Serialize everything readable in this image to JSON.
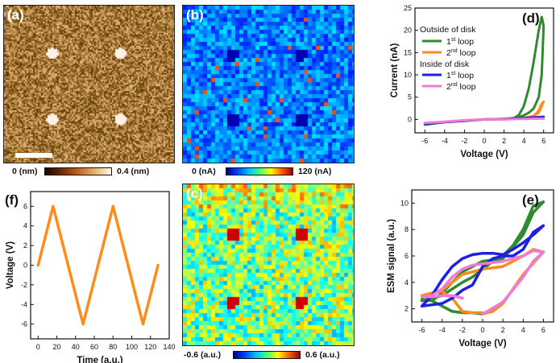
{
  "panels": {
    "a": {
      "label": "(a)",
      "cbar_min": "0 (nm)",
      "cbar_max": "0.4 (nm)"
    },
    "b": {
      "label": "(b)",
      "cbar_min": "0 (nA)",
      "cbar_max": "120 (nA)"
    },
    "c": {
      "label": "(c)",
      "cbar_min": "-0.6 (a.u.)",
      "cbar_max": "0.6 (a.u.)"
    },
    "d": {
      "label": "(d)"
    },
    "e": {
      "label": "(e)"
    },
    "f": {
      "label": "(f)"
    }
  },
  "colors": {
    "green": "#2e8b2e",
    "orange": "#ff8c1a",
    "blue": "#1f1fe0",
    "pink": "#f07ad8"
  },
  "chart_data": [
    {
      "id": "d",
      "type": "line",
      "xlabel": "Voltage (V)",
      "ylabel": "Current (nA)",
      "xlim": [
        -7,
        7
      ],
      "ylim": [
        -3,
        25
      ],
      "xticks": [
        -6,
        -4,
        -2,
        0,
        2,
        4,
        6
      ],
      "yticks": [
        0,
        5,
        10,
        15,
        20,
        25
      ],
      "legend": {
        "title1": "Outside of disk",
        "title2": "Inside of disk",
        "sup": "st",
        "sup2": "nd",
        "loop": "loop",
        "n1": "1",
        "n2": "2"
      },
      "series": [
        {
          "name": "Outside 1st loop",
          "color": "green",
          "x": [
            -6,
            -4,
            -2,
            0,
            2,
            3,
            3.5,
            4,
            4.5,
            5,
            5.5,
            5.8,
            6,
            5.8,
            5.5,
            5,
            4.5,
            4,
            3.5,
            3,
            2,
            0,
            -2,
            -4,
            -6
          ],
          "y": [
            -1.2,
            -0.6,
            -0.3,
            0,
            0.1,
            0.3,
            1,
            3,
            7,
            13,
            20,
            23,
            21,
            10,
            5,
            2.5,
            1.5,
            0.9,
            0.5,
            0.3,
            0.1,
            0,
            -0.3,
            -0.6,
            -1.2
          ]
        },
        {
          "name": "Outside 2nd loop",
          "color": "orange",
          "x": [
            -6,
            -4,
            -2,
            0,
            2,
            4,
            5,
            5.5,
            5.8,
            6,
            5.8,
            5.5,
            5,
            4,
            2,
            0,
            -2,
            -4,
            -6
          ],
          "y": [
            -1.0,
            -0.5,
            -0.2,
            0,
            0,
            0.2,
            0.8,
            2,
            3.5,
            4,
            3,
            1.5,
            0.8,
            0.3,
            0,
            0,
            -0.2,
            -0.5,
            -1.0
          ]
        },
        {
          "name": "Inside 1st loop",
          "color": "blue",
          "x": [
            -6,
            -4,
            -2,
            0,
            2,
            4,
            6,
            4,
            2,
            0,
            -2,
            -4,
            -6
          ],
          "y": [
            -1.0,
            -0.6,
            -0.3,
            0,
            0.1,
            0.3,
            0.6,
            0.3,
            0.1,
            0,
            -0.3,
            -0.6,
            -1.0
          ]
        },
        {
          "name": "Inside 2nd loop",
          "color": "pink",
          "x": [
            -6,
            -4,
            -2,
            0,
            2,
            4,
            6,
            4,
            2,
            0,
            -2,
            -4,
            -6
          ],
          "y": [
            -0.8,
            -0.5,
            -0.2,
            0,
            0.05,
            0.1,
            0.2,
            0.1,
            0.05,
            0,
            -0.2,
            -0.5,
            -0.8
          ]
        }
      ]
    },
    {
      "id": "e",
      "type": "line",
      "xlabel": "Voltage (V)",
      "ylabel": "ESM signal (a.u.)",
      "xlim": [
        -7,
        7
      ],
      "ylim": [
        1,
        11
      ],
      "xticks": [
        -6,
        -4,
        -2,
        0,
        2,
        4,
        6
      ],
      "yticks": [
        2,
        4,
        6,
        8,
        10
      ],
      "series": [
        {
          "name": "Outside 1st loop",
          "color": "green",
          "x": [
            0,
            -1,
            -2,
            -3,
            -4,
            -5,
            -6,
            -5,
            -4,
            -2,
            0,
            2,
            4,
            5,
            6,
            5,
            4,
            3,
            2,
            1,
            0,
            -1,
            -2,
            -3,
            -4,
            -5,
            -6
          ],
          "y": [
            1.6,
            1.7,
            1.7,
            1.8,
            2.2,
            2.6,
            2.7,
            2.6,
            3.2,
            4.8,
            5.6,
            5.8,
            7.6,
            9.3,
            10.1,
            9.8,
            8.0,
            6.8,
            6.0,
            5.6,
            5.0,
            4.4,
            4.0,
            3.5,
            3.0,
            2.8,
            2.6
          ]
        },
        {
          "name": "Outside 2nd loop",
          "color": "orange",
          "x": [
            0,
            1,
            2,
            4,
            6,
            5,
            4,
            2,
            0,
            -2,
            -4,
            -5,
            -6,
            -5,
            -4,
            -3,
            -2,
            -1,
            0
          ],
          "y": [
            1.6,
            1.8,
            2.4,
            4.6,
            6.3,
            6.5,
            6.0,
            5.2,
            5.0,
            4.6,
            3.4,
            3.1,
            3.0,
            3.2,
            3.3,
            2.8,
            1.8,
            1.7,
            1.7
          ]
        },
        {
          "name": "Inside 1st loop",
          "color": "blue",
          "x": [
            -6,
            -5,
            -4,
            -3,
            -2,
            -1,
            0,
            1,
            2,
            3,
            4,
            5,
            6,
            5,
            4,
            3,
            2,
            1,
            0,
            -1,
            -2,
            -3,
            -4,
            -5,
            -6
          ],
          "y": [
            2.2,
            2.3,
            2.4,
            2.8,
            3.4,
            3.8,
            5.2,
            5.8,
            6.0,
            6.0,
            6.5,
            7.8,
            8.3,
            7.6,
            7.0,
            6.5,
            6.1,
            6.2,
            6.2,
            6.1,
            5.8,
            5.2,
            4.2,
            3.0,
            2.2
          ]
        },
        {
          "name": "Inside 2nd loop",
          "color": "pink",
          "x": [
            0,
            2,
            4,
            5,
            6,
            5,
            4,
            2,
            0,
            -1,
            -2,
            -3,
            -4,
            -5,
            -6,
            -5,
            -4,
            -3,
            -2
          ],
          "y": [
            1.6,
            2.5,
            4.4,
            5.6,
            6.3,
            6.4,
            6.0,
            5.6,
            5.4,
            5.3,
            5.0,
            4.4,
            3.5,
            3.0,
            2.9,
            2.9,
            3.0,
            3.0,
            2.8
          ]
        }
      ]
    },
    {
      "id": "f",
      "type": "line",
      "xlabel": "Time (a.u.)",
      "ylabel": "Voltage (V)",
      "xlim": [
        -8,
        140
      ],
      "ylim": [
        -7.5,
        7.5
      ],
      "xticks": [
        0,
        20,
        40,
        60,
        80,
        100,
        120,
        140
      ],
      "yticks": [
        -6,
        -4,
        -2,
        0,
        2,
        4,
        6
      ],
      "series": [
        {
          "name": "Voltage",
          "color": "orange",
          "x": [
            0,
            16,
            48,
            80,
            112,
            128
          ],
          "y": [
            0,
            6,
            -6,
            6,
            -6,
            0
          ]
        }
      ]
    }
  ]
}
